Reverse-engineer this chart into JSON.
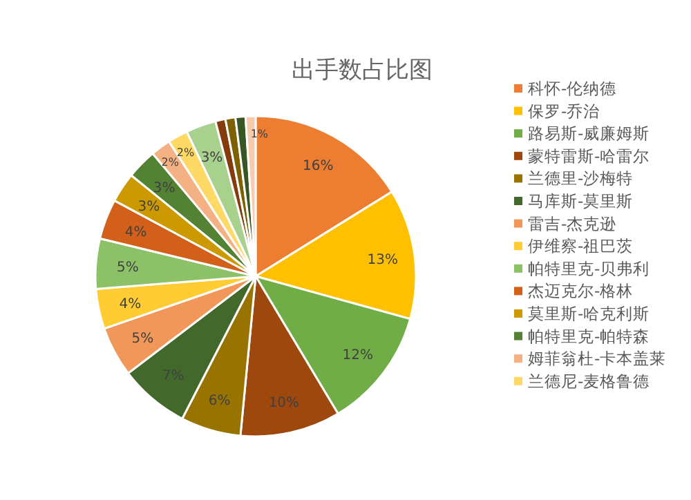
{
  "chart_data": {
    "type": "pie",
    "title": "出手数占比图",
    "categories": [
      "科怀-伦纳德",
      "保罗-乔治",
      "路易斯-威廉姆斯",
      "蒙特雷斯-哈雷尔",
      "兰德里-沙梅特",
      "马库斯-莫里斯",
      "雷吉-杰克逊",
      "伊维察-祖巴茨",
      "帕特里克-贝弗利",
      "杰迈克尔-格林",
      "莫里斯-哈克利斯",
      "帕特里克-帕特森",
      "姆菲翁杜-卡本盖莱",
      "兰德尼-麦格鲁德",
      null,
      null,
      null,
      null,
      null
    ],
    "values": [
      16,
      13,
      12,
      10,
      6,
      7,
      5,
      4,
      5,
      4,
      3,
      3,
      2,
      2,
      3,
      1,
      1,
      1,
      1
    ],
    "colors": [
      "#ed7d31",
      "#ffc000",
      "#70ad47",
      "#9e480e",
      "#997300",
      "#43682b",
      "#f1975a",
      "#ffcd33",
      "#8cc168",
      "#d2601a",
      "#cc9a00",
      "#548235",
      "#f4b183",
      "#ffd966",
      "#a9d18e",
      "#843c0c",
      "#7f6000",
      "#375623",
      "#f8cbad"
    ],
    "value_labels": [
      "16%",
      "13%",
      "12%",
      "10%",
      "6%",
      "7%",
      "5%",
      "4%",
      "5%",
      "4%",
      "3%",
      "3%",
      "2%",
      "2%",
      "3%",
      null,
      null,
      null,
      "1%"
    ],
    "legend": "right"
  }
}
